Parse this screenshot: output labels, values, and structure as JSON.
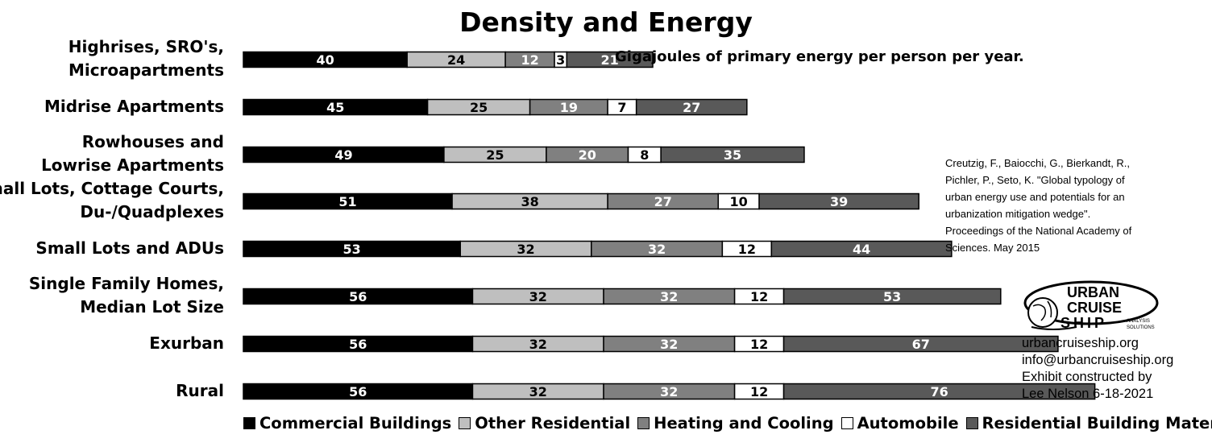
{
  "chart_data": {
    "type": "bar",
    "orientation": "horizontal",
    "stacked": true,
    "title": "Density and Energy",
    "unit_note": "Gigajoules of primary energy per person per year.",
    "categories": [
      [
        "Highrises, SRO's,",
        "Microapartments"
      ],
      [
        "Midrise Apartments"
      ],
      [
        "Rowhouses and",
        "Lowrise Apartments"
      ],
      [
        "Small Lots, Cottage Courts,",
        "Du-/Quadplexes"
      ],
      [
        "Small Lots and ADUs"
      ],
      [
        "Single Family Homes,",
        "Median Lot Size"
      ],
      [
        "Exurban"
      ],
      [
        "Rural"
      ]
    ],
    "series": [
      {
        "name": "Commercial Buildings",
        "color": "#000000",
        "label_color": "#ffffff",
        "values": [
          40,
          45,
          49,
          51,
          53,
          56,
          56,
          56
        ]
      },
      {
        "name": "Other Residential",
        "color": "#bfbfbf",
        "label_color": "#000000",
        "values": [
          24,
          25,
          25,
          38,
          32,
          32,
          32,
          32
        ]
      },
      {
        "name": "Heating and Cooling",
        "color": "#808080",
        "label_color": "#ffffff",
        "values": [
          12,
          19,
          20,
          27,
          32,
          32,
          32,
          32
        ]
      },
      {
        "name": "Automobile",
        "color": "#ffffff",
        "label_color": "#000000",
        "values": [
          3,
          7,
          8,
          10,
          12,
          12,
          12,
          12
        ]
      },
      {
        "name": "Residential Building Materials",
        "color": "#595959",
        "label_color": "#ffffff",
        "values": [
          21,
          27,
          35,
          39,
          44,
          53,
          67,
          76
        ]
      }
    ],
    "axis_visible": false,
    "grid": false,
    "legend_position": "bottom"
  },
  "citation": "Creutzig, F., Baiocchi, G., Bierkandt, R., Pichler, P., Seto, K. \"Global typology of urban energy use and potentials for an urbanization mitigation wedge\". Proceedings of the National Academy of Sciences. May 2015",
  "logo": {
    "line1": "URBAN",
    "line2": "CRUISE",
    "line3": "SHIP",
    "sub1": "ANALYSIS",
    "sub2": "SOLUTIONS",
    "icon": "globe-ship-logo"
  },
  "contact": {
    "website": "urbancruiseship.org",
    "email": "info@urbancruiseship.org",
    "credit_line1": "Exhibit constructed by",
    "credit_line2": "Lee Nelson 6-18-2021"
  }
}
